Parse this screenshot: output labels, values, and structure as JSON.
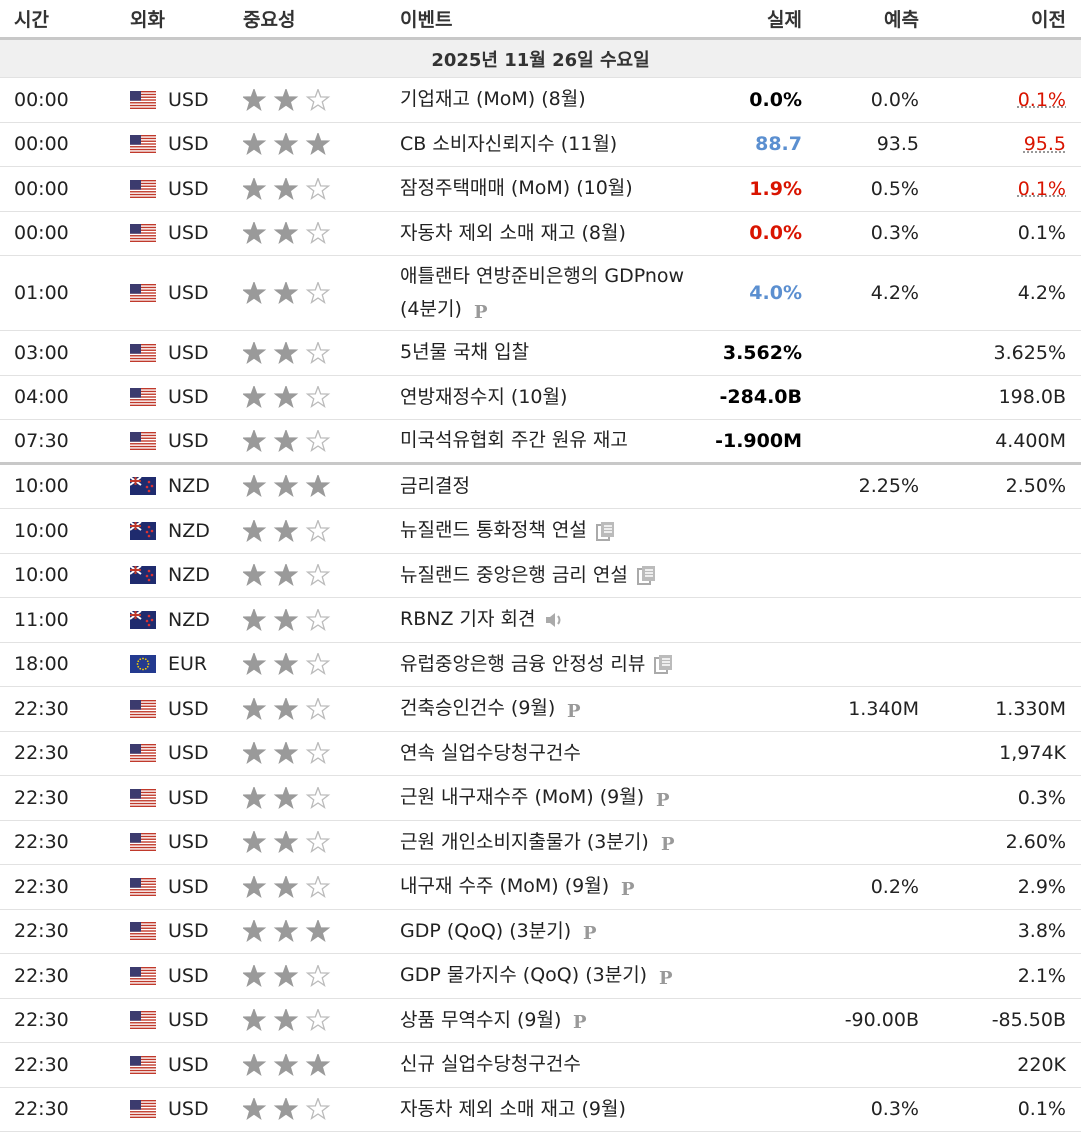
{
  "header": {
    "columns": [
      "시간",
      "외화",
      "중요성",
      "이벤트",
      "실제",
      "예측",
      "이전"
    ]
  },
  "date": "2025년 11월 26일 수요일",
  "rows": [
    {
      "time": "00:00",
      "currency": "USD",
      "importance": 2,
      "event": "기업재고 (MoM) (8월)",
      "actual": "0.0%",
      "actual_color": "#000000",
      "forecast": "0.0%",
      "previous": "0.1%",
      "previous_revised": true
    },
    {
      "time": "00:00",
      "currency": "USD",
      "importance": 3,
      "event": "CB 소비자신뢰지수 (11월)",
      "actual": "88.7",
      "actual_color": "#5b8fd0",
      "forecast": "93.5",
      "previous": "95.5",
      "previous_revised": true
    },
    {
      "time": "00:00",
      "currency": "USD",
      "importance": 2,
      "event": "잠정주택매매 (MoM) (10월)",
      "actual": "1.9%",
      "actual_color": "#d91400",
      "forecast": "0.5%",
      "previous": "0.1%",
      "previous_revised": true
    },
    {
      "time": "00:00",
      "currency": "USD",
      "importance": 2,
      "event": "자동차 제외 소매 재고 (8월)",
      "actual": "0.0%",
      "actual_color": "#d91400",
      "forecast": "0.3%",
      "previous": "0.1%"
    },
    {
      "time": "01:00",
      "currency": "USD",
      "importance": 2,
      "event": "애틀랜타 연방준비은행의 GDPnow (4분기)",
      "icon": "p",
      "actual": "4.0%",
      "actual_color": "#5b8fd0",
      "forecast": "4.2%",
      "previous": "4.2%"
    },
    {
      "time": "03:00",
      "currency": "USD",
      "importance": 2,
      "event": "5년물 국채 입찰",
      "actual": "3.562%",
      "actual_color": "#000000",
      "previous": "3.625%"
    },
    {
      "time": "04:00",
      "currency": "USD",
      "importance": 2,
      "event": "연방재정수지 (10월)",
      "actual": "-284.0B",
      "actual_color": "#000000",
      "previous": "198.0B"
    },
    {
      "time": "07:30",
      "currency": "USD",
      "importance": 2,
      "event": "미국석유협회 주간 원유 재고",
      "actual": "-1.900M",
      "actual_color": "#000000",
      "previous": "4.400M",
      "thick_border_below": true
    },
    {
      "time": "10:00",
      "currency": "NZD",
      "importance": 3,
      "event": "금리결정",
      "forecast": "2.25%",
      "previous": "2.50%"
    },
    {
      "time": "10:00",
      "currency": "NZD",
      "importance": 2,
      "event": "뉴질랜드 통화정책 연설",
      "icon": "doc"
    },
    {
      "time": "10:00",
      "currency": "NZD",
      "importance": 2,
      "event": "뉴질랜드 중앙은행 금리 연설",
      "icon": "doc"
    },
    {
      "time": "11:00",
      "currency": "NZD",
      "importance": 2,
      "event": "RBNZ 기자 회견",
      "icon": "audio"
    },
    {
      "time": "18:00",
      "currency": "EUR",
      "importance": 2,
      "event": "유럽중앙은행 금융 안정성 리뷰",
      "icon": "doc"
    },
    {
      "time": "22:30",
      "currency": "USD",
      "importance": 2,
      "event": "건축승인건수 (9월)",
      "icon": "p",
      "forecast": "1.340M",
      "previous": "1.330M"
    },
    {
      "time": "22:30",
      "currency": "USD",
      "importance": 2,
      "event": "연속 실업수당청구건수",
      "previous": "1,974K"
    },
    {
      "time": "22:30",
      "currency": "USD",
      "importance": 2,
      "event": "근원 내구재수주 (MoM) (9월)",
      "icon": "p",
      "previous": "0.3%"
    },
    {
      "time": "22:30",
      "currency": "USD",
      "importance": 2,
      "event": "근원 개인소비지출물가 (3분기)",
      "icon": "p",
      "previous": "2.60%"
    },
    {
      "time": "22:30",
      "currency": "USD",
      "importance": 2,
      "event": "내구재 수주 (MoM) (9월)",
      "icon": "p",
      "forecast": "0.2%",
      "previous": "2.9%"
    },
    {
      "time": "22:30",
      "currency": "USD",
      "importance": 3,
      "event": "GDP (QoQ) (3분기)",
      "icon": "p",
      "previous": "3.8%"
    },
    {
      "time": "22:30",
      "currency": "USD",
      "importance": 2,
      "event": "GDP 물가지수 (QoQ) (3분기)",
      "icon": "p",
      "previous": "2.1%"
    },
    {
      "time": "22:30",
      "currency": "USD",
      "importance": 2,
      "event": "상품 무역수지 (9월)",
      "icon": "p",
      "forecast": "-90.00B",
      "previous": "-85.50B"
    },
    {
      "time": "22:30",
      "currency": "USD",
      "importance": 3,
      "event": "신규 실업수당청구건수",
      "previous": "220K"
    },
    {
      "time": "22:30",
      "currency": "USD",
      "importance": 2,
      "event": "자동차 제외 소매 재고 (9월)",
      "forecast": "0.3%",
      "previous": "0.1%"
    }
  ]
}
